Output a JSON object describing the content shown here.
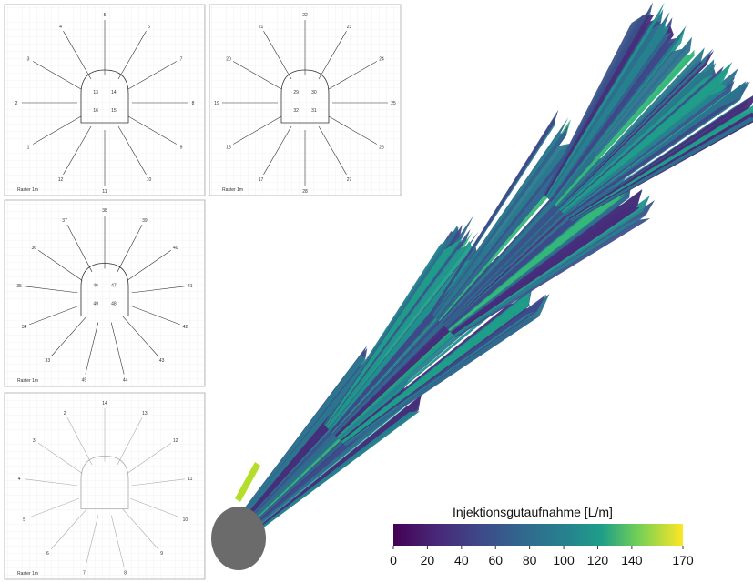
{
  "panels": [
    {
      "labels": [
        "5",
        "6",
        "7",
        "8",
        "9",
        "10",
        "11",
        "12",
        "1",
        "2",
        "3",
        "4"
      ],
      "inner": [
        "13",
        "14",
        "15",
        "16"
      ],
      "footer": "Raster 1m"
    },
    {
      "labels": [
        "22",
        "23",
        "24",
        "25",
        "26",
        "27",
        "28",
        "17",
        "18",
        "19",
        "20",
        "21"
      ],
      "inner": [
        "29",
        "30",
        "31",
        "32"
      ],
      "footer": "Raster 1m"
    },
    {
      "labels": [
        "38",
        "39",
        "40",
        "41",
        "42",
        "43",
        "44",
        "45",
        "33",
        "34",
        "35",
        "36",
        "37"
      ],
      "inner": [
        "46",
        "47",
        "48",
        "49"
      ],
      "footer": "Raster 1m"
    },
    {
      "labels": [
        "14",
        "13",
        "12",
        "11",
        "10",
        "9",
        "8",
        "7",
        "6",
        "5",
        "4",
        "3",
        "2"
      ],
      "inner": [],
      "footer": "Raster 1m"
    }
  ],
  "colorbar": {
    "title": "Injektionsgutaufnahme [L/m]",
    "lim": [
      0,
      170
    ],
    "ticks": [
      0,
      20,
      40,
      60,
      80,
      100,
      120,
      140,
      170
    ]
  }
}
